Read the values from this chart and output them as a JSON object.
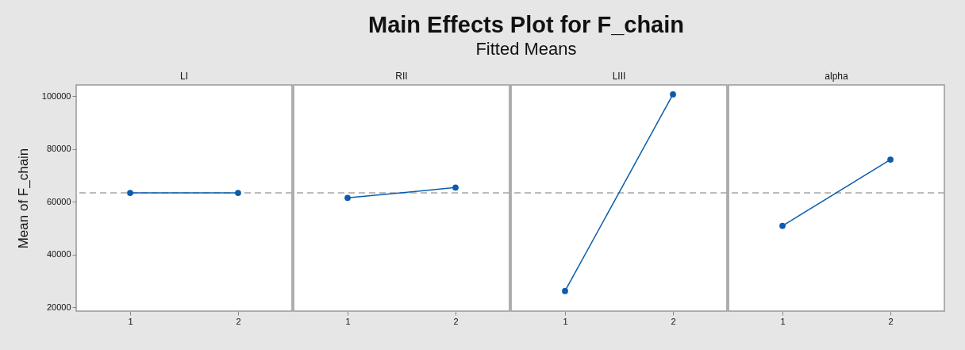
{
  "chart_data": [
    {
      "type": "other",
      "title": "Main Effects Plot for F_chain",
      "subtitle": "Fitted Means"
    },
    {
      "type": "line",
      "title": "LI",
      "ylabel": "Mean of F_chain",
      "categories": [
        "1",
        "2"
      ],
      "ylim": [
        18600,
        104300
      ],
      "yticks": [
        20000,
        40000,
        60000,
        80000,
        100000
      ],
      "marker": "circle",
      "series": [
        {
          "color": "#0b5cad",
          "values": [
            63400,
            63400
          ]
        }
      ],
      "ref_lines": [
        {
          "axis": "y",
          "value": 63400,
          "color": "#a6a6a6",
          "line_style": "dashed"
        }
      ]
    },
    {
      "type": "line",
      "title": "RII",
      "categories": [
        "1",
        "2"
      ],
      "ylim": [
        18600,
        104300
      ],
      "yticks": [
        20000,
        40000,
        60000,
        80000,
        100000
      ],
      "tick_labels": "x",
      "marker": "circle",
      "series": [
        {
          "color": "#0b5cad",
          "values": [
            61500,
            65400
          ]
        }
      ],
      "ref_lines": [
        {
          "axis": "y",
          "value": 63400,
          "color": "#a6a6a6",
          "line_style": "dashed"
        }
      ]
    },
    {
      "type": "line",
      "title": "LIII",
      "categories": [
        "1",
        "2"
      ],
      "ylim": [
        18600,
        104300
      ],
      "yticks": [
        20000,
        40000,
        60000,
        80000,
        100000
      ],
      "tick_labels": "x",
      "marker": "circle",
      "series": [
        {
          "color": "#0b5cad",
          "values": [
            26200,
            100700
          ]
        }
      ],
      "ref_lines": [
        {
          "axis": "y",
          "value": 63400,
          "color": "#a6a6a6",
          "line_style": "dashed"
        }
      ]
    },
    {
      "type": "line",
      "title": "alpha",
      "categories": [
        "1",
        "2"
      ],
      "ylim": [
        18600,
        104300
      ],
      "yticks": [
        20000,
        40000,
        60000,
        80000,
        100000
      ],
      "tick_labels": "x",
      "marker": "circle",
      "series": [
        {
          "color": "#0b5cad",
          "values": [
            50900,
            76000
          ]
        }
      ],
      "ref_lines": [
        {
          "axis": "y",
          "value": 63400,
          "color": "#a6a6a6",
          "line_style": "dashed"
        }
      ]
    }
  ]
}
